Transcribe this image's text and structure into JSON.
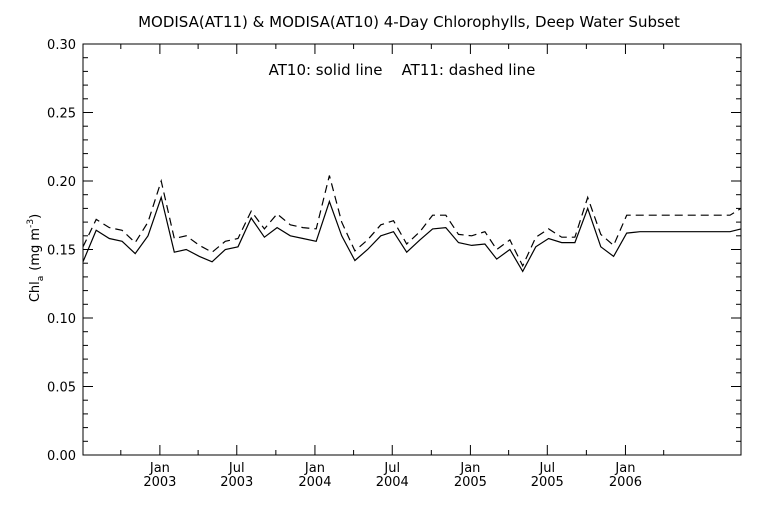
{
  "chart_data": {
    "type": "line",
    "title": "MODISA(AT11) & MODISA(AT10) 4-Day Chlorophylls, Deep Water Subset",
    "annotation": "AT10: solid line    AT11: dashed line",
    "ylabel_main": "Chl",
    "ylabel_sub": "a",
    "ylabel_units": "(mg m",
    "ylabel_sup": "-3",
    "ylabel_close": ")",
    "ylim": [
      0.0,
      0.3
    ],
    "yticks": [
      "0.00",
      "0.05",
      "0.10",
      "0.15",
      "0.20",
      "0.25",
      "0.30"
    ],
    "xlim": [
      "2002-07-04",
      "2006-09-30"
    ],
    "xticks": [
      {
        "date": "2003-01-01",
        "line1": "Jan",
        "line2": "2003"
      },
      {
        "date": "2003-07-01",
        "line1": "Jul",
        "line2": "2003"
      },
      {
        "date": "2004-01-01",
        "line1": "Jan",
        "line2": "2004"
      },
      {
        "date": "2004-07-01",
        "line1": "Jul",
        "line2": "2004"
      },
      {
        "date": "2005-01-01",
        "line1": "Jan",
        "line2": "2005"
      },
      {
        "date": "2005-07-01",
        "line1": "Jul",
        "line2": "2005"
      },
      {
        "date": "2006-01-01",
        "line1": "Jan",
        "line2": "2006"
      }
    ],
    "x": [
      "2002-07-04",
      "2002-08-04",
      "2002-09-04",
      "2002-10-04",
      "2002-11-04",
      "2002-12-04",
      "2003-01-04",
      "2003-02-04",
      "2003-03-04",
      "2003-04-04",
      "2003-05-04",
      "2003-06-04",
      "2003-07-04",
      "2003-08-04",
      "2003-09-04",
      "2003-10-04",
      "2003-11-04",
      "2003-12-04",
      "2004-01-04",
      "2004-02-04",
      "2004-03-04",
      "2004-04-04",
      "2004-05-04",
      "2004-06-04",
      "2004-07-04",
      "2004-08-04",
      "2004-09-04",
      "2004-10-04",
      "2004-11-04",
      "2004-12-04",
      "2005-01-04",
      "2005-02-04",
      "2005-03-04",
      "2005-04-04",
      "2005-05-04",
      "2005-06-04",
      "2005-07-04",
      "2005-08-04",
      "2005-09-04",
      "2005-10-04",
      "2005-11-04",
      "2005-12-04",
      "2006-01-04",
      "2006-02-04",
      "2006-03-04",
      "2006-04-04",
      "2006-05-04",
      "2006-06-04",
      "2006-07-04",
      "2006-08-04",
      "2006-09-04",
      "2006-09-30"
    ],
    "series": [
      {
        "name": "AT10",
        "style": "solid",
        "values": [
          0.141,
          0.164,
          0.158,
          0.156,
          0.147,
          0.16,
          0.188,
          0.148,
          0.15,
          0.145,
          0.141,
          0.15,
          0.152,
          0.173,
          0.159,
          0.166,
          0.16,
          0.158,
          0.156,
          0.185,
          0.16,
          0.142,
          0.15,
          0.16,
          0.163,
          0.148,
          0.157,
          0.165,
          0.166,
          0.155,
          0.153,
          0.154,
          0.143,
          0.15,
          0.134,
          0.152,
          0.158,
          0.155,
          0.155,
          0.18,
          0.152,
          0.145,
          0.162,
          0.163,
          0.163,
          0.163,
          0.163,
          0.163,
          0.163,
          0.163,
          0.163,
          0.165
        ]
      },
      {
        "name": "AT11",
        "style": "dashed",
        "values": [
          0.152,
          0.172,
          0.166,
          0.164,
          0.155,
          0.17,
          0.2,
          0.158,
          0.16,
          0.153,
          0.148,
          0.156,
          0.158,
          0.178,
          0.165,
          0.176,
          0.168,
          0.166,
          0.165,
          0.204,
          0.17,
          0.149,
          0.157,
          0.168,
          0.171,
          0.154,
          0.163,
          0.175,
          0.175,
          0.161,
          0.16,
          0.163,
          0.15,
          0.157,
          0.138,
          0.159,
          0.165,
          0.159,
          0.159,
          0.188,
          0.161,
          0.153,
          0.175,
          0.175,
          0.175,
          0.175,
          0.175,
          0.175,
          0.175,
          0.175,
          0.175,
          0.18
        ]
      }
    ],
    "grid": false,
    "legend": "none"
  }
}
